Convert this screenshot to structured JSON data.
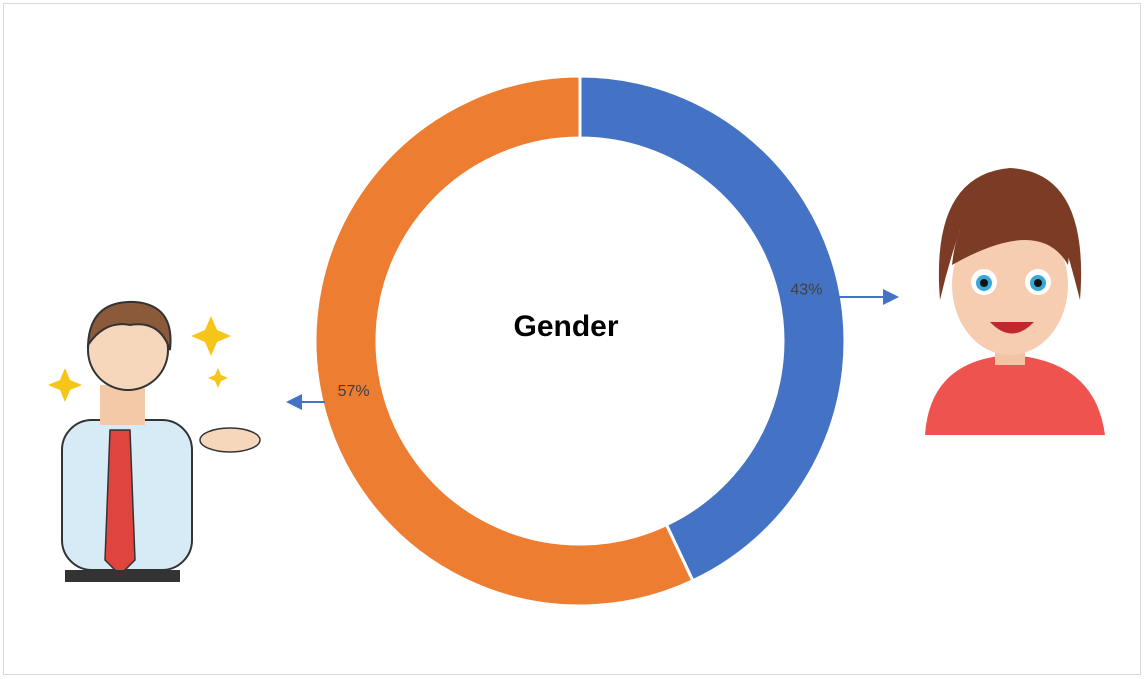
{
  "chart_data": {
    "type": "donut",
    "title": "Gender",
    "values": [
      43,
      57
    ],
    "value_labels": [
      "43%",
      "57%"
    ],
    "colors": [
      "#4472c4",
      "#ed7d31"
    ]
  }
}
